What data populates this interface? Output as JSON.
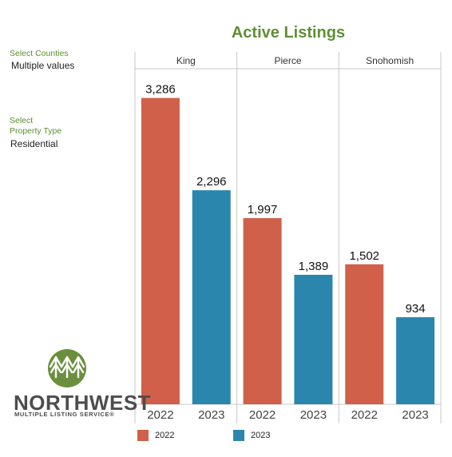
{
  "filters": {
    "counties": {
      "title": "Select Counties",
      "value": "Multiple values"
    },
    "property_type": {
      "title_line1": "Select",
      "title_line2": "Property Type",
      "value": "Residential"
    }
  },
  "logo": {
    "name": "NORTHWEST",
    "subtitle": "MULTIPLE LISTING SERVICE®"
  },
  "colors": {
    "series_2022": "#d0604a",
    "series_2023": "#2b86ad",
    "title": "#5f8f35",
    "filter_label": "#5a8f2e"
  },
  "chart_data": {
    "type": "bar",
    "title": "Active Listings",
    "categories": [
      "King",
      "Pierce",
      "Snohomish"
    ],
    "x_labels": [
      "2022",
      "2023"
    ],
    "series": [
      {
        "name": "2022",
        "values": [
          3286,
          1997,
          1502
        ],
        "labels": [
          "3,286",
          "1,997",
          "1,502"
        ]
      },
      {
        "name": "2023",
        "values": [
          2296,
          1389,
          934
        ],
        "labels": [
          "2,296",
          "1,389",
          "934"
        ]
      }
    ],
    "ylim": [
      0,
      3600
    ],
    "legend": {
      "position": "bottom",
      "items": [
        "2022",
        "2023"
      ]
    }
  }
}
